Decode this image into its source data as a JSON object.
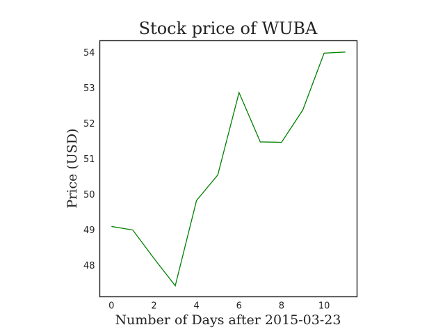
{
  "chart_data": {
    "type": "line",
    "title": "Stock price of WUBA",
    "xlabel": "Number of Days after 2015-03-23",
    "ylabel": "Price (USD)",
    "xlim": [
      -0.55,
      11.55
    ],
    "ylim": [
      47.12,
      54.33
    ],
    "x_ticks": [
      0,
      2,
      4,
      6,
      8,
      10
    ],
    "y_ticks": [
      48,
      49,
      50,
      51,
      52,
      53,
      54
    ],
    "grid": false,
    "series": [
      {
        "color": "#008000",
        "x": [
          0,
          1,
          2,
          3,
          4,
          5,
          6,
          7,
          8,
          9,
          10,
          11
        ],
        "y": [
          49.1,
          49.0,
          48.2,
          47.43,
          49.83,
          50.55,
          52.87,
          51.48,
          51.47,
          52.38,
          53.98,
          54.01
        ]
      }
    ]
  }
}
